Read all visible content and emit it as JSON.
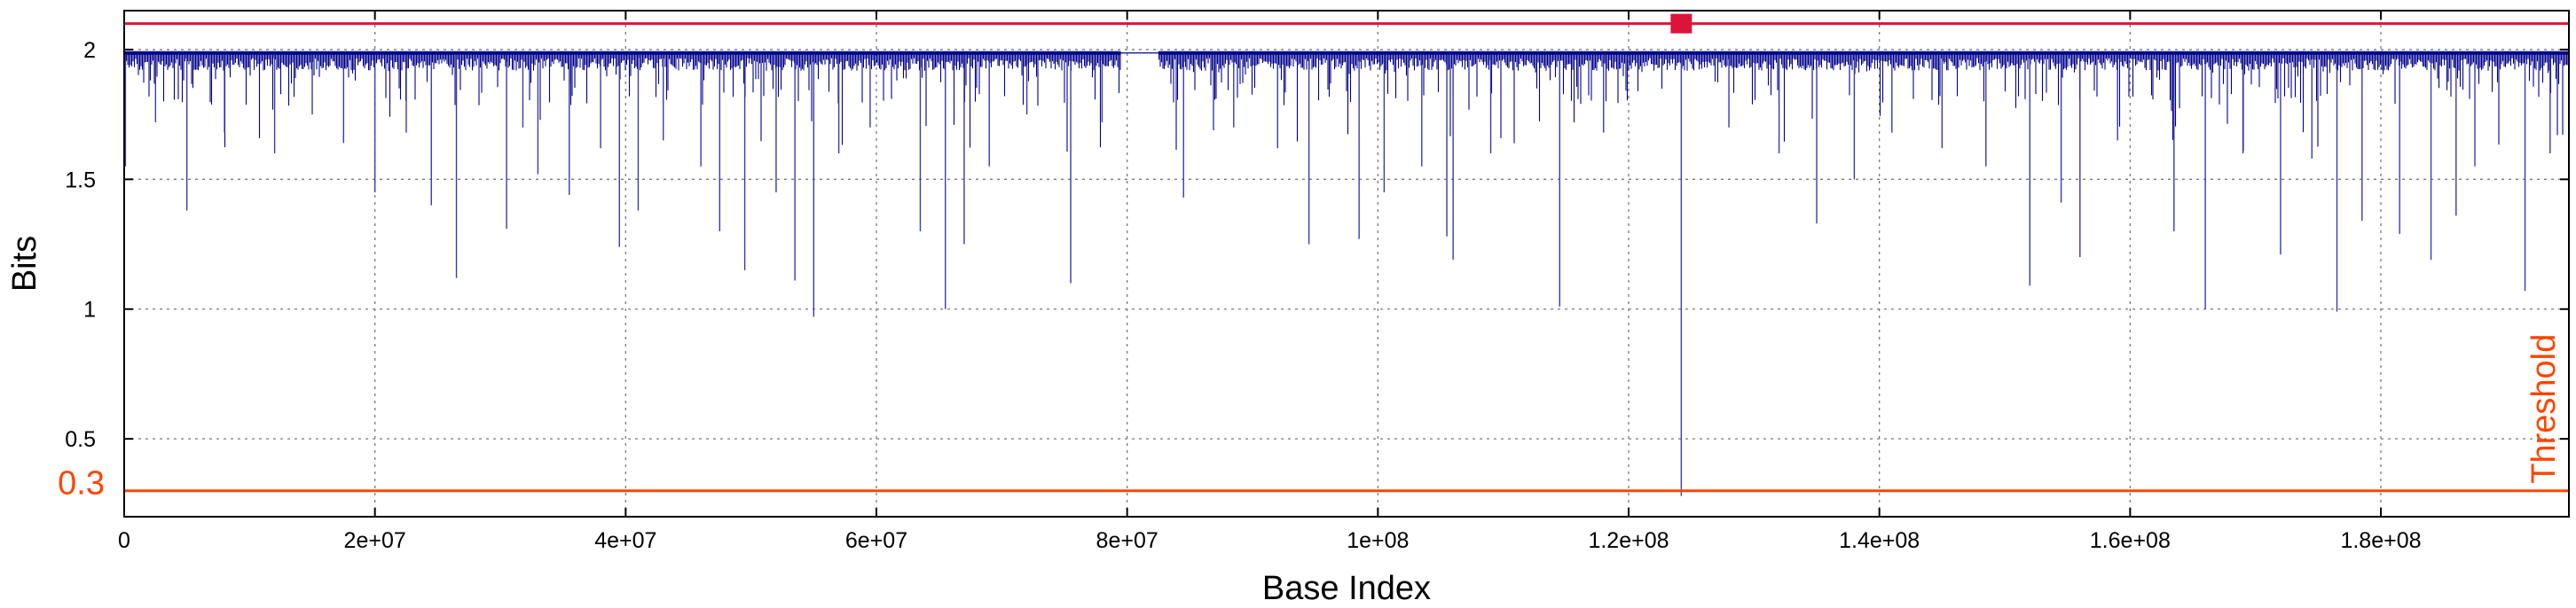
{
  "chart_data": {
    "type": "line",
    "title": "",
    "xlabel": "Base Index",
    "ylabel": "Bits",
    "xlim": [
      0,
      195000000
    ],
    "ylim": [
      0.2,
      2.15
    ],
    "x_ticks": [
      {
        "value": 0,
        "label": "0"
      },
      {
        "value": 20000000,
        "label": "2e+07"
      },
      {
        "value": 40000000,
        "label": "4e+07"
      },
      {
        "value": 60000000,
        "label": "6e+07"
      },
      {
        "value": 80000000,
        "label": "8e+07"
      },
      {
        "value": 100000000,
        "label": "1e+08"
      },
      {
        "value": 120000000,
        "label": "1.2e+08"
      },
      {
        "value": 140000000,
        "label": "1.4e+08"
      },
      {
        "value": 160000000,
        "label": "1.6e+08"
      },
      {
        "value": 180000000,
        "label": "1.8e+08"
      }
    ],
    "y_ticks": [
      {
        "value": 0.5,
        "label": "0.5"
      },
      {
        "value": 1,
        "label": "1"
      },
      {
        "value": 1.5,
        "label": "1.5"
      },
      {
        "value": 2,
        "label": "2"
      }
    ],
    "grid": true,
    "series_color": "#00008b",
    "baseline_bits": 1.98,
    "gap_range": [
      79500000,
      82500000
    ],
    "dips": [
      {
        "x": 100000,
        "y": 1.55
      },
      {
        "x": 2500000,
        "y": 1.72
      },
      {
        "x": 5000000,
        "y": 1.38
      },
      {
        "x": 8000000,
        "y": 1.68
      },
      {
        "x": 12000000,
        "y": 1.6
      },
      {
        "x": 15000000,
        "y": 1.75
      },
      {
        "x": 17500000,
        "y": 1.64
      },
      {
        "x": 20000000,
        "y": 1.45
      },
      {
        "x": 22500000,
        "y": 1.68
      },
      {
        "x": 24500000,
        "y": 1.4
      },
      {
        "x": 26500000,
        "y": 1.12
      },
      {
        "x": 30500000,
        "y": 1.31
      },
      {
        "x": 31800000,
        "y": 1.7
      },
      {
        "x": 33000000,
        "y": 1.52
      },
      {
        "x": 35500000,
        "y": 1.44
      },
      {
        "x": 38000000,
        "y": 1.62
      },
      {
        "x": 39500000,
        "y": 1.24
      },
      {
        "x": 41000000,
        "y": 1.38
      },
      {
        "x": 43000000,
        "y": 1.65
      },
      {
        "x": 46000000,
        "y": 1.55
      },
      {
        "x": 47500000,
        "y": 1.3
      },
      {
        "x": 49500000,
        "y": 1.15
      },
      {
        "x": 52000000,
        "y": 1.45
      },
      {
        "x": 53500000,
        "y": 1.11
      },
      {
        "x": 55000000,
        "y": 0.97
      },
      {
        "x": 57000000,
        "y": 1.6
      },
      {
        "x": 59500000,
        "y": 1.7
      },
      {
        "x": 63500000,
        "y": 1.3
      },
      {
        "x": 65500000,
        "y": 1.0
      },
      {
        "x": 67000000,
        "y": 1.25
      },
      {
        "x": 69000000,
        "y": 1.55
      },
      {
        "x": 72000000,
        "y": 1.75
      },
      {
        "x": 75500000,
        "y": 1.1
      },
      {
        "x": 78000000,
        "y": 1.72
      },
      {
        "x": 84500000,
        "y": 1.43
      },
      {
        "x": 88500000,
        "y": 1.7
      },
      {
        "x": 92000000,
        "y": 1.62
      },
      {
        "x": 94500000,
        "y": 1.25
      },
      {
        "x": 98500000,
        "y": 1.27
      },
      {
        "x": 100500000,
        "y": 1.45
      },
      {
        "x": 103500000,
        "y": 1.55
      },
      {
        "x": 105500000,
        "y": 1.28
      },
      {
        "x": 106000000,
        "y": 1.19
      },
      {
        "x": 109000000,
        "y": 1.6
      },
      {
        "x": 114500000,
        "y": 1.01
      },
      {
        "x": 118000000,
        "y": 1.68
      },
      {
        "x": 124200000,
        "y": 0.28
      },
      {
        "x": 128000000,
        "y": 1.7
      },
      {
        "x": 132000000,
        "y": 1.6
      },
      {
        "x": 135000000,
        "y": 1.33
      },
      {
        "x": 138000000,
        "y": 1.5
      },
      {
        "x": 141000000,
        "y": 1.68
      },
      {
        "x": 145000000,
        "y": 1.62
      },
      {
        "x": 148500000,
        "y": 1.55
      },
      {
        "x": 152000000,
        "y": 1.09
      },
      {
        "x": 154500000,
        "y": 1.41
      },
      {
        "x": 156000000,
        "y": 1.2
      },
      {
        "x": 159000000,
        "y": 1.65
      },
      {
        "x": 163500000,
        "y": 1.3
      },
      {
        "x": 166000000,
        "y": 1.0
      },
      {
        "x": 169000000,
        "y": 1.6
      },
      {
        "x": 172000000,
        "y": 1.21
      },
      {
        "x": 174500000,
        "y": 1.58
      },
      {
        "x": 176500000,
        "y": 0.99
      },
      {
        "x": 178500000,
        "y": 1.34
      },
      {
        "x": 181500000,
        "y": 1.29
      },
      {
        "x": 184000000,
        "y": 1.19
      },
      {
        "x": 186000000,
        "y": 1.36
      },
      {
        "x": 187500000,
        "y": 1.55
      },
      {
        "x": 191500000,
        "y": 1.07
      },
      {
        "x": 193500000,
        "y": 1.6
      }
    ],
    "threshold": {
      "value": 0.3,
      "value_label": "0.3",
      "label": "Threshold",
      "color": "#ff4500"
    },
    "upper_line": {
      "value": 2.1,
      "color": "#dc143c"
    },
    "marker": {
      "x": 124200000,
      "y": 2.1,
      "color": "#dc143c"
    }
  }
}
